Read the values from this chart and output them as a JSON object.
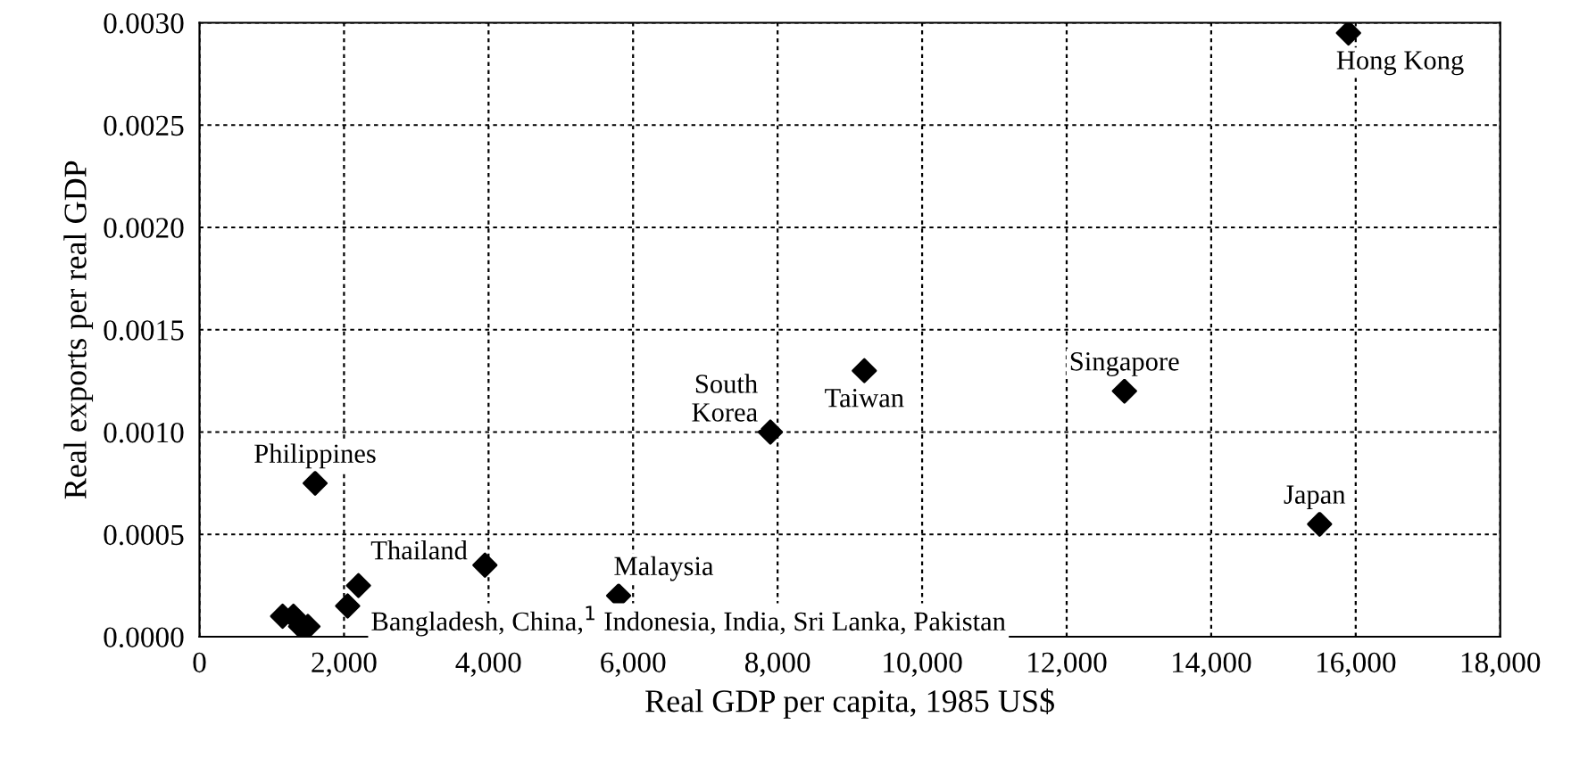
{
  "chart_data": {
    "type": "scatter",
    "xlabel": "Real GDP per capita, 1985 US$",
    "ylabel": "Real exports per real GDP",
    "x": [
      15900,
      9200,
      12800,
      7900,
      15500,
      1600,
      3950,
      5800,
      2200,
      2050,
      1150,
      1300,
      1400,
      1500
    ],
    "series": [
      {
        "color": "#000000",
        "values": [
          0.00295,
          0.0013,
          0.0012,
          0.001,
          0.00055,
          0.00075,
          0.00035,
          0.0002,
          0.00025,
          0.00015,
          0.0001,
          0.0001,
          5e-05,
          5e-05
        ]
      }
    ],
    "marker": "diamond",
    "grid": true,
    "xlim": [
      0,
      18000
    ],
    "xticks": [
      {
        "value": 0,
        "label": "0"
      },
      {
        "value": 2000,
        "label": "2,000"
      },
      {
        "value": 4000,
        "label": "4,000"
      },
      {
        "value": 6000,
        "label": "6,000"
      },
      {
        "value": 8000,
        "label": "8,000"
      },
      {
        "value": 10000,
        "label": "10,000"
      },
      {
        "value": 12000,
        "label": "12,000"
      },
      {
        "value": 14000,
        "label": "14,000"
      },
      {
        "value": 16000,
        "label": "16,000"
      },
      {
        "value": 18000,
        "label": "18,000"
      }
    ],
    "ylim": [
      0,
      0.003
    ],
    "yticks": [
      {
        "value": 0,
        "label": "0.0000"
      },
      {
        "value": 0.0005,
        "label": "0.0005"
      },
      {
        "value": 0.001,
        "label": "0.0010"
      },
      {
        "value": 0.0015,
        "label": "0.0015"
      },
      {
        "value": 0.002,
        "label": "0.0020"
      },
      {
        "value": 0.0025,
        "label": "0.0025"
      },
      {
        "value": 0.003,
        "label": "0.0030"
      }
    ],
    "annotations": [
      {
        "text": "Hong Kong",
        "x": 15900,
        "y": 0.00295
      },
      {
        "text": "Taiwan",
        "x": 9200,
        "y": 0.0013
      },
      {
        "text": "Singapore",
        "x": 12800,
        "y": 0.0012
      },
      {
        "text": "South\nKorea",
        "x": 7900,
        "y": 0.001
      },
      {
        "text": "Japan",
        "x": 15500,
        "y": 0.00055
      },
      {
        "text": "Philippines",
        "x": 1600,
        "y": 0.00075
      },
      {
        "text": "Thailand",
        "x": 3950,
        "y": 0.00035
      },
      {
        "text": "Malaysia",
        "x": 5800,
        "y": 0.0002
      },
      {
        "text": "Bangladesh, China,$^{1}$ Indonesia, India, Sri Lanka, Pakistan",
        "x": 2200,
        "y": 0.00015
      }
    ]
  }
}
